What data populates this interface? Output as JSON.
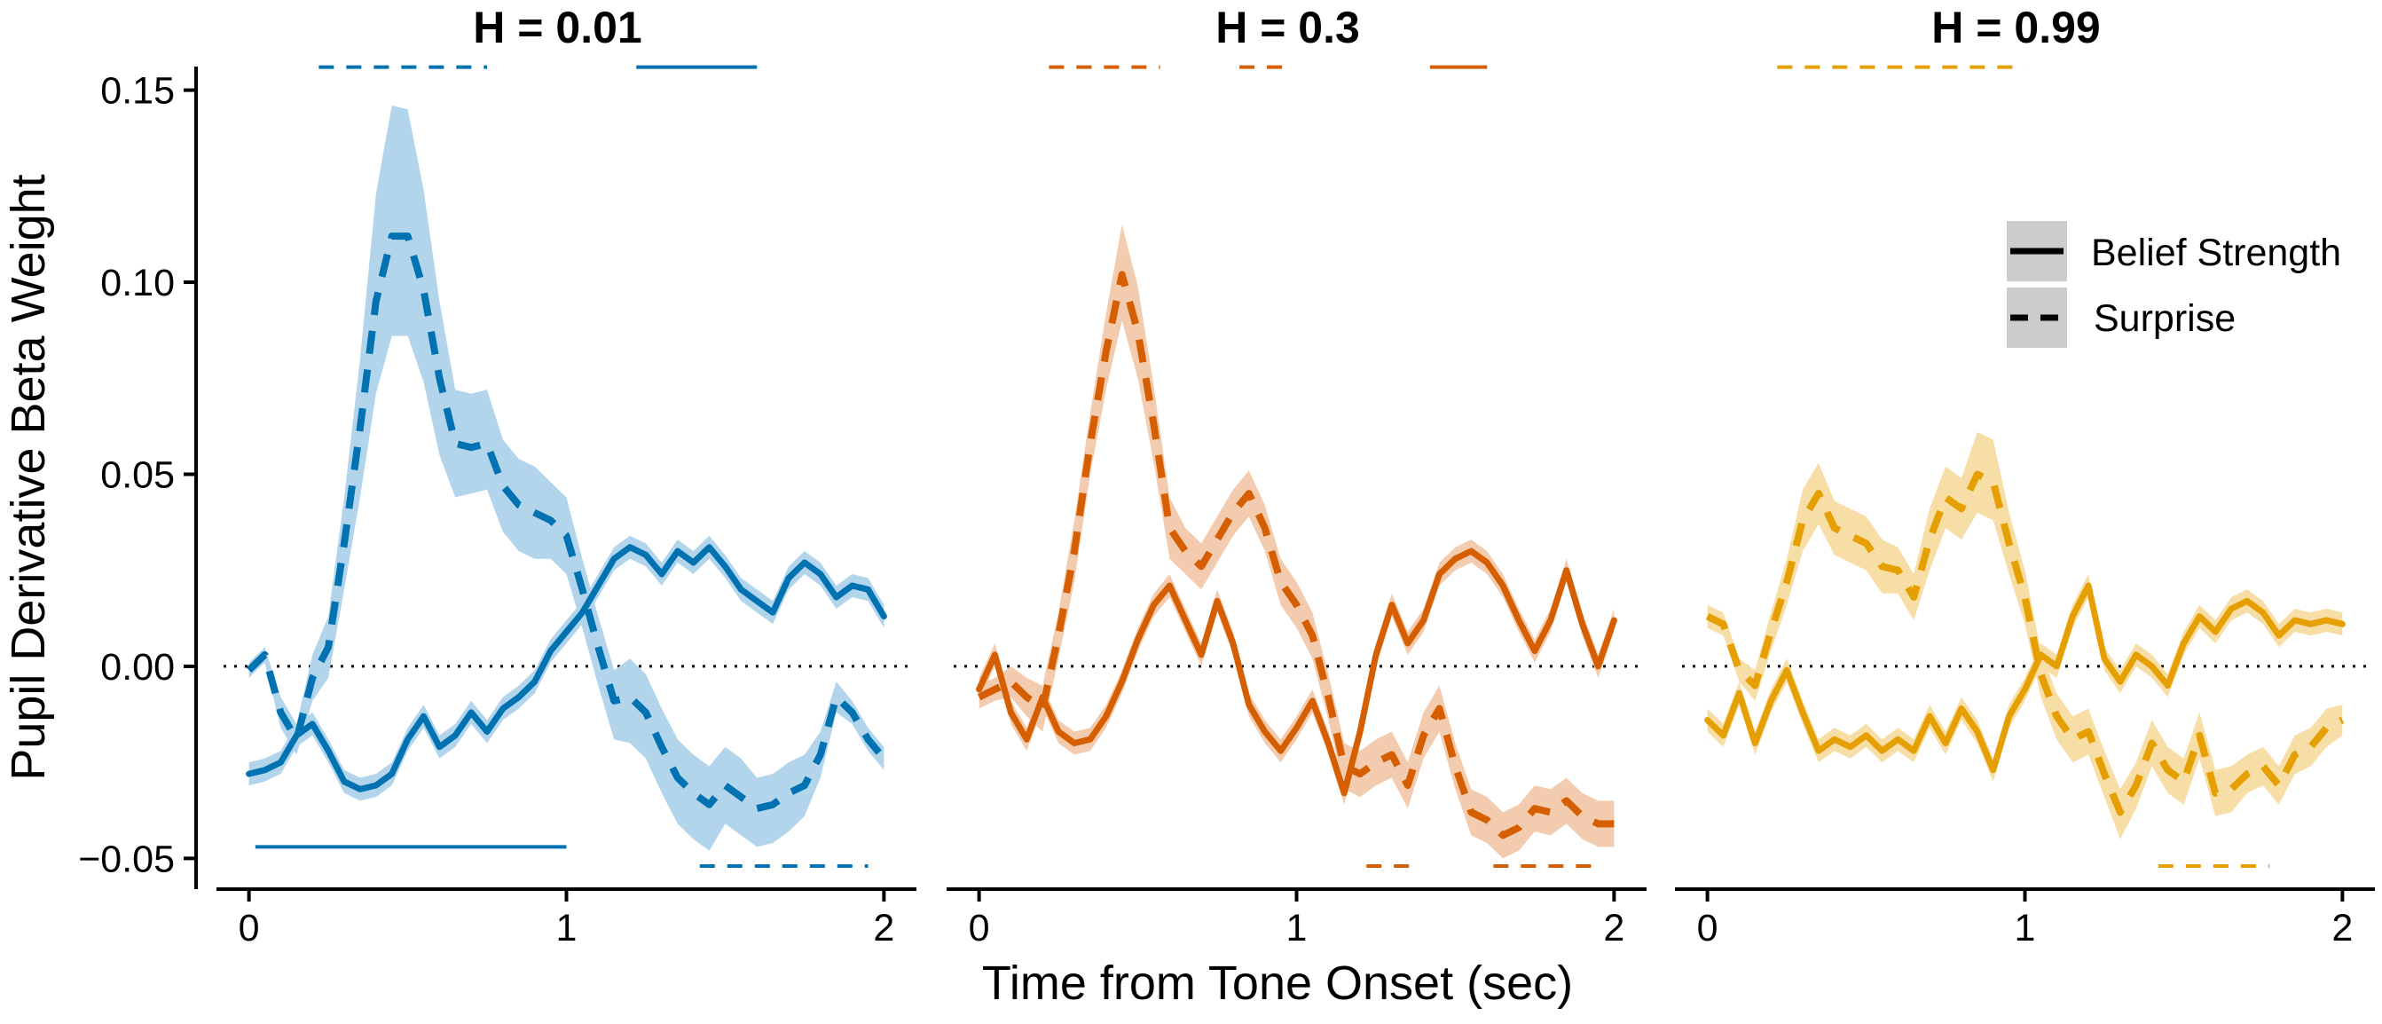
{
  "chart_data": {
    "type": "line",
    "ylabel": "Pupil Derivative Beta Weight",
    "xlabel": "Time from Tone Onset (sec)",
    "ylim": [
      -0.058,
      0.167
    ],
    "xlim": [
      -0.08,
      2.08
    ],
    "yticks": [
      -0.05,
      0.0,
      0.05,
      0.1,
      0.15
    ],
    "ytick_labels": [
      "−0.05",
      "0.00",
      "0.05",
      "0.10",
      "0.15"
    ],
    "xticks": [
      0,
      1,
      2
    ],
    "xtick_labels": [
      "0",
      "1",
      "2"
    ],
    "zero_line": "dotted",
    "legend": {
      "placement": "right of third panel, upper",
      "entries": [
        {
          "label": "Belief Strength",
          "line": "solid"
        },
        {
          "label": "Surprise",
          "line": "dashed"
        }
      ]
    },
    "panels": [
      {
        "title": "H = 0.01",
        "color": "#0072B2",
        "band_color": "#B3D5EC",
        "belief_strength": {
          "x": [
            0,
            0.05,
            0.1,
            0.15,
            0.2,
            0.25,
            0.3,
            0.35,
            0.4,
            0.45,
            0.5,
            0.55,
            0.6,
            0.65,
            0.7,
            0.75,
            0.8,
            0.85,
            0.9,
            0.95,
            1.0,
            1.05,
            1.1,
            1.15,
            1.2,
            1.25,
            1.3,
            1.35,
            1.4,
            1.45,
            1.5,
            1.55,
            1.6,
            1.65,
            1.7,
            1.75,
            1.8,
            1.85,
            1.9,
            1.95,
            2.0
          ],
          "y": [
            -0.028,
            -0.027,
            -0.025,
            -0.018,
            -0.015,
            -0.022,
            -0.03,
            -0.032,
            -0.031,
            -0.028,
            -0.019,
            -0.013,
            -0.021,
            -0.018,
            -0.012,
            -0.017,
            -0.011,
            -0.008,
            -0.004,
            0.004,
            0.009,
            0.014,
            0.021,
            0.028,
            0.031,
            0.029,
            0.024,
            0.03,
            0.027,
            0.031,
            0.026,
            0.02,
            0.017,
            0.014,
            0.023,
            0.027,
            0.024,
            0.018,
            0.021,
            0.02,
            0.013
          ],
          "band": 0.003
        },
        "surprise": {
          "x": [
            0,
            0.05,
            0.1,
            0.15,
            0.2,
            0.25,
            0.3,
            0.35,
            0.4,
            0.45,
            0.5,
            0.55,
            0.6,
            0.65,
            0.7,
            0.75,
            0.8,
            0.85,
            0.9,
            0.95,
            1.0,
            1.05,
            1.1,
            1.15,
            1.2,
            1.25,
            1.3,
            1.35,
            1.4,
            1.45,
            1.5,
            1.55,
            1.6,
            1.65,
            1.7,
            1.75,
            1.8,
            1.85,
            1.9,
            1.95,
            2.0
          ],
          "y": [
            -0.001,
            0.003,
            -0.012,
            -0.019,
            -0.003,
            0.005,
            0.032,
            0.062,
            0.095,
            0.112,
            0.112,
            0.098,
            0.075,
            0.058,
            0.057,
            0.058,
            0.047,
            0.042,
            0.04,
            0.038,
            0.034,
            0.02,
            0.005,
            -0.009,
            -0.008,
            -0.012,
            -0.021,
            -0.029,
            -0.033,
            -0.036,
            -0.031,
            -0.034,
            -0.037,
            -0.036,
            -0.033,
            -0.031,
            -0.023,
            -0.008,
            -0.012,
            -0.019,
            -0.024
          ],
          "band_lo": [
            0.002,
            0.002,
            0.004,
            0.004,
            0.006,
            0.008,
            0.012,
            0.018,
            0.024,
            0.026,
            0.026,
            0.024,
            0.02,
            0.014,
            0.012,
            0.012,
            0.012,
            0.012,
            0.012,
            0.01,
            0.01,
            0.01,
            0.01,
            0.01,
            0.012,
            0.012,
            0.012,
            0.012,
            0.012,
            0.012,
            0.01,
            0.01,
            0.01,
            0.01,
            0.01,
            0.008,
            0.006,
            0.004,
            0.003,
            0.003,
            0.003
          ],
          "band_hi": [
            0.002,
            0.002,
            0.004,
            0.004,
            0.006,
            0.008,
            0.012,
            0.018,
            0.028,
            0.034,
            0.033,
            0.026,
            0.02,
            0.014,
            0.014,
            0.014,
            0.012,
            0.012,
            0.012,
            0.01,
            0.01,
            0.008,
            0.008,
            0.008,
            0.01,
            0.01,
            0.01,
            0.01,
            0.01,
            0.01,
            0.01,
            0.01,
            0.008,
            0.008,
            0.008,
            0.008,
            0.006,
            0.004,
            0.003,
            0.003,
            0.003
          ]
        },
        "significance": [
          {
            "y": 0.156,
            "x": [
              0.22,
              0.75
            ],
            "line": "dashed"
          },
          {
            "y": 0.156,
            "x": [
              1.22,
              1.6
            ],
            "line": "solid"
          },
          {
            "y": -0.047,
            "x": [
              0.02,
              1.0
            ],
            "line": "solid"
          },
          {
            "y": -0.052,
            "x": [
              1.42,
              1.95
            ],
            "line": "dashed"
          }
        ]
      },
      {
        "title": "H = 0.3",
        "color": "#D55E00",
        "band_color": "#F3CCB0",
        "belief_strength": {
          "x": [
            0,
            0.05,
            0.1,
            0.15,
            0.2,
            0.25,
            0.3,
            0.35,
            0.4,
            0.45,
            0.5,
            0.55,
            0.6,
            0.65,
            0.7,
            0.75,
            0.8,
            0.85,
            0.9,
            0.95,
            1.0,
            1.05,
            1.1,
            1.15,
            1.2,
            1.25,
            1.3,
            1.35,
            1.4,
            1.45,
            1.5,
            1.55,
            1.6,
            1.65,
            1.7,
            1.75,
            1.8,
            1.85,
            1.9,
            1.95,
            2.0
          ],
          "y": [
            -0.006,
            0.003,
            -0.012,
            -0.019,
            -0.008,
            -0.017,
            -0.02,
            -0.019,
            -0.013,
            -0.004,
            0.007,
            0.016,
            0.021,
            0.012,
            0.003,
            0.017,
            0.006,
            -0.01,
            -0.017,
            -0.022,
            -0.016,
            -0.009,
            -0.02,
            -0.033,
            -0.017,
            0.003,
            0.016,
            0.006,
            0.012,
            0.024,
            0.028,
            0.03,
            0.027,
            0.021,
            0.012,
            0.004,
            0.012,
            0.025,
            0.011,
            0.0,
            0.012
          ],
          "band": 0.003
        },
        "surprise": {
          "x": [
            0,
            0.05,
            0.1,
            0.15,
            0.2,
            0.25,
            0.3,
            0.35,
            0.4,
            0.45,
            0.5,
            0.55,
            0.6,
            0.65,
            0.7,
            0.75,
            0.8,
            0.85,
            0.9,
            0.95,
            1.0,
            1.05,
            1.1,
            1.15,
            1.2,
            1.25,
            1.3,
            1.35,
            1.4,
            1.45,
            1.5,
            1.55,
            1.6,
            1.65,
            1.7,
            1.75,
            1.8,
            1.85,
            1.9,
            1.95,
            2.0
          ],
          "y": [
            -0.008,
            -0.006,
            -0.004,
            -0.008,
            -0.011,
            0.008,
            0.03,
            0.058,
            0.082,
            0.102,
            0.087,
            0.063,
            0.036,
            0.03,
            0.026,
            0.033,
            0.04,
            0.045,
            0.036,
            0.022,
            0.016,
            0.008,
            -0.008,
            -0.026,
            -0.028,
            -0.025,
            -0.023,
            -0.031,
            -0.018,
            -0.011,
            -0.026,
            -0.038,
            -0.04,
            -0.044,
            -0.042,
            -0.037,
            -0.038,
            -0.035,
            -0.039,
            -0.041,
            -0.041
          ],
          "band_lo": [
            0.003,
            0.003,
            0.004,
            0.005,
            0.006,
            0.006,
            0.008,
            0.008,
            0.01,
            0.012,
            0.012,
            0.01,
            0.008,
            0.006,
            0.006,
            0.006,
            0.006,
            0.006,
            0.006,
            0.006,
            0.006,
            0.006,
            0.006,
            0.006,
            0.006,
            0.006,
            0.006,
            0.006,
            0.006,
            0.006,
            0.006,
            0.006,
            0.006,
            0.006,
            0.006,
            0.006,
            0.006,
            0.006,
            0.006,
            0.006,
            0.006
          ],
          "band_hi": [
            0.003,
            0.003,
            0.004,
            0.005,
            0.006,
            0.006,
            0.008,
            0.008,
            0.01,
            0.013,
            0.012,
            0.01,
            0.008,
            0.006,
            0.006,
            0.006,
            0.006,
            0.006,
            0.006,
            0.006,
            0.006,
            0.006,
            0.006,
            0.006,
            0.006,
            0.006,
            0.006,
            0.006,
            0.006,
            0.006,
            0.006,
            0.006,
            0.006,
            0.006,
            0.006,
            0.006,
            0.006,
            0.006,
            0.006,
            0.006,
            0.006
          ]
        },
        "significance": [
          {
            "y": 0.156,
            "x": [
              0.22,
              0.57
            ],
            "line": "dashed"
          },
          {
            "y": 0.156,
            "x": [
              0.82,
              0.97
            ],
            "line": "dashed"
          },
          {
            "y": 0.156,
            "x": [
              1.42,
              1.6
            ],
            "line": "solid"
          },
          {
            "y": -0.052,
            "x": [
              1.22,
              1.37
            ],
            "line": "dashed"
          },
          {
            "y": -0.052,
            "x": [
              1.62,
              1.95
            ],
            "line": "dashed"
          }
        ]
      },
      {
        "title": "H = 0.99",
        "color": "#E69F00",
        "band_color": "#F7DDA6",
        "belief_strength": {
          "x": [
            0,
            0.05,
            0.1,
            0.15,
            0.2,
            0.25,
            0.3,
            0.35,
            0.4,
            0.45,
            0.5,
            0.55,
            0.6,
            0.65,
            0.7,
            0.75,
            0.8,
            0.85,
            0.9,
            0.95,
            1.0,
            1.05,
            1.1,
            1.15,
            1.2,
            1.25,
            1.3,
            1.35,
            1.4,
            1.45,
            1.5,
            1.55,
            1.6,
            1.65,
            1.7,
            1.75,
            1.8,
            1.85,
            1.9,
            1.95,
            2.0
          ],
          "y": [
            -0.014,
            -0.018,
            -0.007,
            -0.02,
            -0.009,
            -0.001,
            -0.012,
            -0.022,
            -0.019,
            -0.021,
            -0.018,
            -0.022,
            -0.019,
            -0.022,
            -0.013,
            -0.02,
            -0.011,
            -0.017,
            -0.027,
            -0.013,
            -0.006,
            0.003,
            0.0,
            0.013,
            0.021,
            0.002,
            -0.004,
            0.003,
            0.0,
            -0.005,
            0.006,
            0.013,
            0.009,
            0.015,
            0.017,
            0.014,
            0.008,
            0.012,
            0.011,
            0.012,
            0.011
          ],
          "band": 0.003
        },
        "surprise": {
          "x": [
            0,
            0.05,
            0.1,
            0.15,
            0.2,
            0.25,
            0.3,
            0.35,
            0.4,
            0.45,
            0.5,
            0.55,
            0.6,
            0.65,
            0.7,
            0.75,
            0.8,
            0.85,
            0.9,
            0.95,
            1.0,
            1.05,
            1.1,
            1.15,
            1.2,
            1.25,
            1.3,
            1.35,
            1.4,
            1.45,
            1.5,
            1.55,
            1.6,
            1.65,
            1.7,
            1.75,
            1.8,
            1.85,
            1.9,
            1.95,
            2.0
          ],
          "y": [
            0.013,
            0.011,
            -0.001,
            -0.005,
            0.009,
            0.022,
            0.038,
            0.045,
            0.036,
            0.034,
            0.032,
            0.026,
            0.025,
            0.018,
            0.033,
            0.044,
            0.041,
            0.05,
            0.048,
            0.032,
            0.018,
            -0.002,
            -0.013,
            -0.019,
            -0.017,
            -0.028,
            -0.038,
            -0.031,
            -0.02,
            -0.027,
            -0.03,
            -0.018,
            -0.033,
            -0.032,
            -0.028,
            -0.026,
            -0.031,
            -0.023,
            -0.021,
            -0.016,
            -0.014
          ],
          "band_lo": [
            0.003,
            0.003,
            0.003,
            0.004,
            0.005,
            0.006,
            0.008,
            0.008,
            0.007,
            0.007,
            0.007,
            0.007,
            0.006,
            0.006,
            0.008,
            0.008,
            0.008,
            0.01,
            0.01,
            0.008,
            0.007,
            0.006,
            0.006,
            0.006,
            0.006,
            0.006,
            0.007,
            0.006,
            0.006,
            0.006,
            0.006,
            0.006,
            0.006,
            0.006,
            0.005,
            0.005,
            0.005,
            0.005,
            0.005,
            0.005,
            0.004
          ],
          "band_hi": [
            0.003,
            0.003,
            0.003,
            0.004,
            0.005,
            0.006,
            0.008,
            0.008,
            0.007,
            0.007,
            0.007,
            0.007,
            0.006,
            0.006,
            0.008,
            0.008,
            0.008,
            0.011,
            0.011,
            0.008,
            0.007,
            0.006,
            0.006,
            0.006,
            0.006,
            0.006,
            0.006,
            0.006,
            0.006,
            0.006,
            0.006,
            0.006,
            0.006,
            0.006,
            0.005,
            0.005,
            0.005,
            0.005,
            0.005,
            0.005,
            0.004
          ]
        },
        "significance": [
          {
            "y": 0.156,
            "x": [
              0.22,
              1.0
            ],
            "line": "dashed"
          },
          {
            "y": -0.052,
            "x": [
              1.42,
              1.77
            ],
            "line": "dashed"
          }
        ]
      }
    ]
  }
}
